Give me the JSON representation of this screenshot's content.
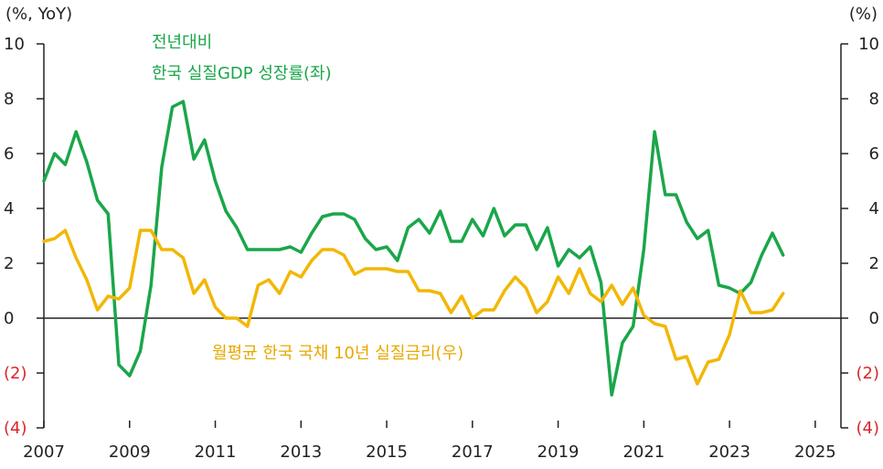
{
  "chart_data": {
    "type": "line",
    "left_axis_unit": "(%, YoY)",
    "right_axis_unit": "(%)",
    "ylim": [
      -4,
      10
    ],
    "y_ticks": [
      10,
      8,
      6,
      4,
      2,
      0,
      -2,
      -4
    ],
    "y_tick_labels": [
      "10",
      "8",
      "6",
      "4",
      "2",
      "0",
      "(2)",
      "(4)"
    ],
    "xlim": [
      2007,
      2025.6
    ],
    "x_ticks": [
      2007,
      2009,
      2011,
      2013,
      2015,
      2017,
      2019,
      2021,
      2023,
      2025
    ],
    "x_tick_labels": [
      "2007",
      "2009",
      "2011",
      "2013",
      "2015",
      "2017",
      "2019",
      "2021",
      "2023",
      "2025"
    ],
    "colors": {
      "gdp": "#1aa64a",
      "rate": "#f2b705",
      "axis": "#222222",
      "negative": "#d9262b"
    },
    "series": [
      {
        "name": "gdp",
        "axis": "left",
        "labels": [
          "전년대비",
          "한국 실질GDP 성장률(좌)"
        ],
        "color": "#1aa64a",
        "x": [
          2007.0,
          2007.25,
          2007.5,
          2007.75,
          2008.0,
          2008.25,
          2008.5,
          2008.75,
          2009.0,
          2009.25,
          2009.5,
          2009.75,
          2010.0,
          2010.25,
          2010.5,
          2010.75,
          2011.0,
          2011.25,
          2011.5,
          2011.75,
          2012.0,
          2012.25,
          2012.5,
          2012.75,
          2013.0,
          2013.25,
          2013.5,
          2013.75,
          2014.0,
          2014.25,
          2014.5,
          2014.75,
          2015.0,
          2015.25,
          2015.5,
          2015.75,
          2016.0,
          2016.25,
          2016.5,
          2016.75,
          2017.0,
          2017.25,
          2017.5,
          2017.75,
          2018.0,
          2018.25,
          2018.5,
          2018.75,
          2019.0,
          2019.25,
          2019.5,
          2019.75,
          2020.0,
          2020.25,
          2020.5,
          2020.75,
          2021.0,
          2021.25,
          2021.5,
          2021.75,
          2022.0,
          2022.25,
          2022.5,
          2022.75,
          2023.0,
          2023.25,
          2023.5,
          2023.75,
          2024.0,
          2024.25
        ],
        "values": [
          5.0,
          6.0,
          5.6,
          6.8,
          5.7,
          4.3,
          3.8,
          -1.7,
          -2.1,
          -1.2,
          1.2,
          5.5,
          7.7,
          7.9,
          5.8,
          6.5,
          5.0,
          3.9,
          3.3,
          2.5,
          2.5,
          2.5,
          2.5,
          2.6,
          2.4,
          3.1,
          3.7,
          3.8,
          3.8,
          3.6,
          2.9,
          2.5,
          2.6,
          2.1,
          3.3,
          3.6,
          3.1,
          3.9,
          2.8,
          2.8,
          3.6,
          3.0,
          4.0,
          3.0,
          3.4,
          3.4,
          2.5,
          3.3,
          1.9,
          2.5,
          2.2,
          2.6,
          1.3,
          -2.8,
          -0.9,
          -0.3,
          2.5,
          6.8,
          4.5,
          4.5,
          3.5,
          2.9,
          3.2,
          1.2,
          1.1,
          0.9,
          1.3,
          2.3,
          3.1,
          2.3
        ]
      },
      {
        "name": "rate",
        "axis": "right",
        "labels": [
          "월평균 한국 국채 10년 실질금리(우)"
        ],
        "color": "#f2b705",
        "x": [
          2007.0,
          2007.25,
          2007.5,
          2007.75,
          2008.0,
          2008.25,
          2008.5,
          2008.75,
          2009.0,
          2009.25,
          2009.5,
          2009.75,
          2010.0,
          2010.25,
          2010.5,
          2010.75,
          2011.0,
          2011.25,
          2011.5,
          2011.75,
          2012.0,
          2012.25,
          2012.5,
          2012.75,
          2013.0,
          2013.25,
          2013.5,
          2013.75,
          2014.0,
          2014.25,
          2014.5,
          2014.75,
          2015.0,
          2015.25,
          2015.5,
          2015.75,
          2016.0,
          2016.25,
          2016.5,
          2016.75,
          2017.0,
          2017.25,
          2017.5,
          2017.75,
          2018.0,
          2018.25,
          2018.5,
          2018.75,
          2019.0,
          2019.25,
          2019.5,
          2019.75,
          2020.0,
          2020.25,
          2020.5,
          2020.75,
          2021.0,
          2021.25,
          2021.5,
          2021.75,
          2022.0,
          2022.25,
          2022.5,
          2022.75,
          2023.0,
          2023.25,
          2023.5,
          2023.75,
          2024.0,
          2024.25
        ],
        "values": [
          2.8,
          2.9,
          3.2,
          2.2,
          1.4,
          0.3,
          0.8,
          0.7,
          1.1,
          3.2,
          3.2,
          2.5,
          2.5,
          2.2,
          0.9,
          1.4,
          0.4,
          0.0,
          0.0,
          -0.3,
          1.2,
          1.4,
          0.9,
          1.7,
          1.5,
          2.1,
          2.5,
          2.5,
          2.3,
          1.6,
          1.8,
          1.8,
          1.8,
          1.7,
          1.7,
          1.0,
          1.0,
          0.9,
          0.2,
          0.8,
          0.0,
          0.3,
          0.3,
          1.0,
          1.5,
          1.1,
          0.2,
          0.6,
          1.5,
          0.9,
          1.8,
          0.9,
          0.6,
          1.2,
          0.5,
          1.1,
          0.1,
          -0.2,
          -0.3,
          -1.5,
          -1.4,
          -2.4,
          -1.6,
          -1.5,
          -0.6,
          1.0,
          0.2,
          0.2,
          0.3,
          0.9
        ]
      }
    ]
  }
}
